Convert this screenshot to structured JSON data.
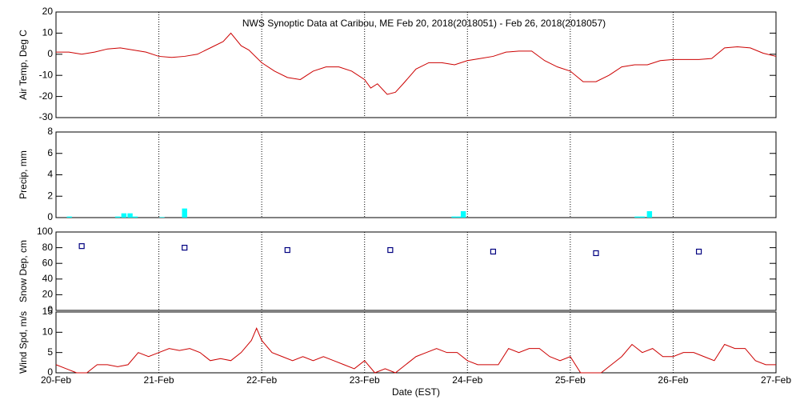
{
  "chart_data": [
    {
      "type": "line",
      "title": "NWS Synoptic Data at Caribou, ME   Feb 20, 2018(2018051) - Feb 26, 2018(2018057)",
      "y_label": "Air Temp, Deg C",
      "color": "#cc0000",
      "xlim": [
        0,
        7
      ],
      "ylim": [
        -30,
        20
      ],
      "yticks": [
        -30,
        -20,
        -10,
        0,
        10,
        20
      ],
      "x": [
        0,
        0.125,
        0.25,
        0.375,
        0.5,
        0.625,
        0.75,
        0.875,
        1.0,
        1.125,
        1.25,
        1.375,
        1.5,
        1.625,
        1.7,
        1.8,
        1.875,
        2.0,
        2.125,
        2.25,
        2.375,
        2.5,
        2.625,
        2.75,
        2.875,
        3.0,
        3.06,
        3.125,
        3.22,
        3.3,
        3.375,
        3.5,
        3.625,
        3.75,
        3.875,
        4.0,
        4.125,
        4.25,
        4.375,
        4.5,
        4.625,
        4.75,
        4.875,
        5.0,
        5.125,
        5.25,
        5.375,
        5.5,
        5.625,
        5.75,
        5.875,
        6.0,
        6.125,
        6.25,
        6.375,
        6.5,
        6.625,
        6.75,
        6.875,
        7.0
      ],
      "values": [
        1,
        1,
        0,
        1,
        2.5,
        3,
        2,
        1,
        -1,
        -1.5,
        -1,
        0,
        3,
        6,
        10,
        4,
        2,
        -4,
        -8,
        -11,
        -12,
        -8,
        -6,
        -6,
        -8,
        -12,
        -16,
        -14,
        -19,
        -18,
        -14,
        -7,
        -4,
        -4,
        -5,
        -3,
        -2,
        -1,
        1,
        1.5,
        1.5,
        -3,
        -6,
        -8,
        -13,
        -13,
        -10,
        -6,
        -5,
        -5,
        -3,
        -2.5,
        -2.5,
        -2.5,
        -2,
        3,
        3.5,
        3,
        0.5,
        -1
      ]
    },
    {
      "type": "bar",
      "y_label": "Precip, mm",
      "color": "#00ffff",
      "xlim": [
        0,
        7
      ],
      "ylim": [
        0,
        8
      ],
      "yticks": [
        0,
        2,
        4,
        6,
        8
      ],
      "x": [
        0.13,
        0.6,
        0.66,
        0.72,
        0.77,
        1.03,
        1.25,
        3.87,
        3.92,
        3.96,
        5.65,
        5.7,
        5.77
      ],
      "values": [
        0.1,
        0.1,
        0.4,
        0.4,
        0.1,
        0.05,
        0.85,
        0.1,
        0.1,
        0.6,
        0.1,
        0.1,
        0.6
      ]
    },
    {
      "type": "scatter",
      "y_label": "Snow Dep, cm",
      "color": "#000080",
      "xlim": [
        0,
        7
      ],
      "ylim": [
        0,
        100
      ],
      "yticks": [
        0,
        20,
        40,
        60,
        80,
        100
      ],
      "x": [
        0.25,
        1.25,
        2.25,
        3.25,
        4.25,
        5.25,
        6.25
      ],
      "values": [
        82,
        80,
        77,
        77,
        75,
        73,
        75
      ]
    },
    {
      "type": "line",
      "y_label": "Wind Spd, m/s",
      "x_label": "Date (EST)",
      "color": "#cc0000",
      "xlim": [
        0,
        7
      ],
      "ylim": [
        0,
        15
      ],
      "yticks": [
        0,
        5,
        10,
        15
      ],
      "xticks": [
        {
          "value": 0,
          "label": "20-Feb"
        },
        {
          "value": 1,
          "label": "21-Feb"
        },
        {
          "value": 2,
          "label": "22-Feb"
        },
        {
          "value": 3,
          "label": "23-Feb"
        },
        {
          "value": 4,
          "label": "24-Feb"
        },
        {
          "value": 5,
          "label": "25-Feb"
        },
        {
          "value": 6,
          "label": "26-Feb"
        },
        {
          "value": 7,
          "label": "27-Feb"
        }
      ],
      "x": [
        0,
        0.1,
        0.2,
        0.3,
        0.4,
        0.5,
        0.6,
        0.7,
        0.8,
        0.9,
        1.0,
        1.1,
        1.2,
        1.3,
        1.4,
        1.5,
        1.6,
        1.7,
        1.8,
        1.9,
        1.95,
        2.0,
        2.1,
        2.2,
        2.3,
        2.4,
        2.5,
        2.6,
        2.7,
        2.8,
        2.9,
        3.0,
        3.1,
        3.2,
        3.3,
        3.4,
        3.5,
        3.6,
        3.7,
        3.8,
        3.9,
        4.0,
        4.1,
        4.2,
        4.3,
        4.4,
        4.5,
        4.6,
        4.7,
        4.8,
        4.9,
        5.0,
        5.1,
        5.2,
        5.3,
        5.4,
        5.5,
        5.6,
        5.7,
        5.8,
        5.9,
        6.0,
        6.1,
        6.2,
        6.3,
        6.4,
        6.5,
        6.6,
        6.7,
        6.8,
        6.9,
        7.0
      ],
      "values": [
        2,
        1,
        0,
        0,
        2,
        2,
        1.5,
        2,
        5,
        4,
        5,
        6,
        5.5,
        6,
        5,
        3,
        3.5,
        3,
        5,
        8,
        11,
        8,
        5,
        4,
        3,
        4,
        3,
        4,
        3,
        2,
        1,
        3,
        0,
        1,
        0,
        2,
        4,
        5,
        6,
        5,
        5,
        3,
        2,
        2,
        2,
        6,
        5,
        6,
        6,
        4,
        3,
        4,
        0,
        0,
        0,
        2,
        4,
        7,
        5,
        6,
        4,
        4,
        5,
        5,
        4,
        3,
        7,
        6,
        6,
        3,
        2,
        2
      ]
    }
  ]
}
